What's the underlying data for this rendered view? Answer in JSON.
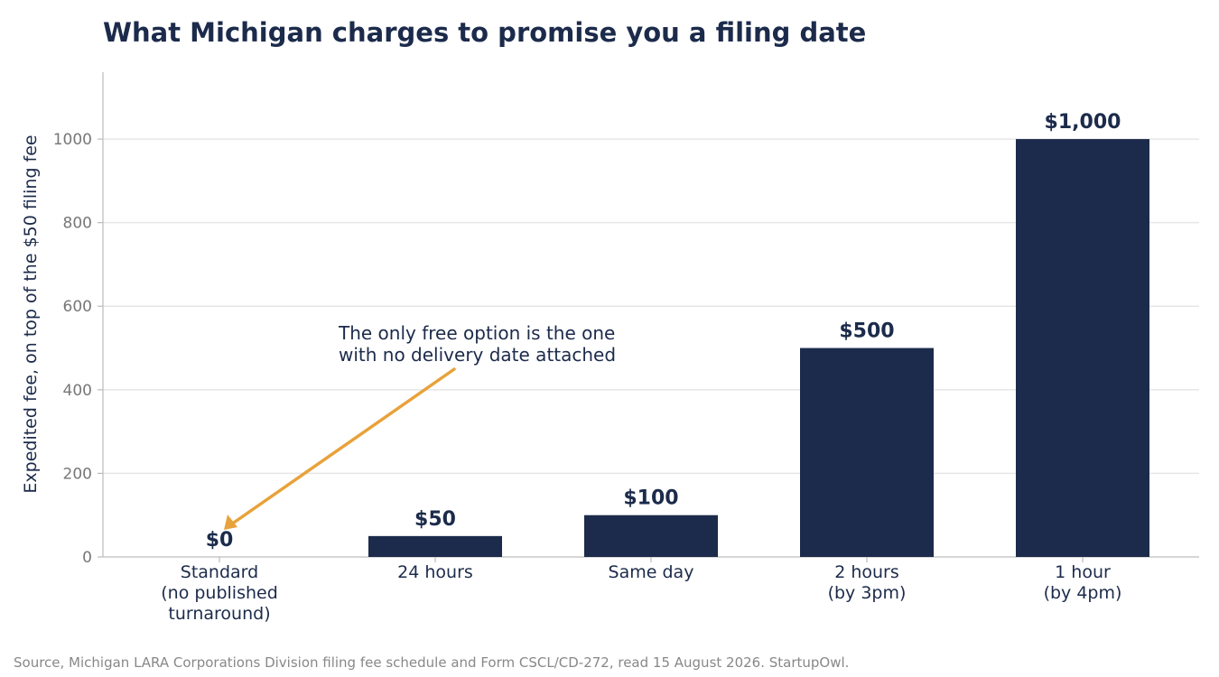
{
  "chart_data": {
    "type": "bar",
    "title": "What Michigan charges to promise you a filing date",
    "ylabel": "Expedited fee, on top of the $50 filing fee",
    "xlabel": "",
    "categories": [
      [
        "Standard",
        "(no published",
        "turnaround)"
      ],
      [
        "24 hours"
      ],
      [
        "Same day"
      ],
      [
        "2 hours",
        "(by 3pm)"
      ],
      [
        "1 hour",
        "(by 4pm)"
      ]
    ],
    "values": [
      0,
      50,
      100,
      500,
      1000
    ],
    "value_labels": [
      "$0",
      "$50",
      "$100",
      "$500",
      "$1,000"
    ],
    "ylim": [
      0,
      1160
    ],
    "yticks": [
      0,
      200,
      400,
      600,
      800,
      1000
    ],
    "grid": "horizontal",
    "bar_color": "#1c2b4b",
    "annotation": {
      "text": [
        "The only free option is the one",
        "with no delivery date attached"
      ],
      "color": "#e8a23a"
    },
    "source": "Source, Michigan LARA Corporations Division filing fee schedule and Form CSCL/CD-272, read 15 August 2026. StartupOwl."
  }
}
